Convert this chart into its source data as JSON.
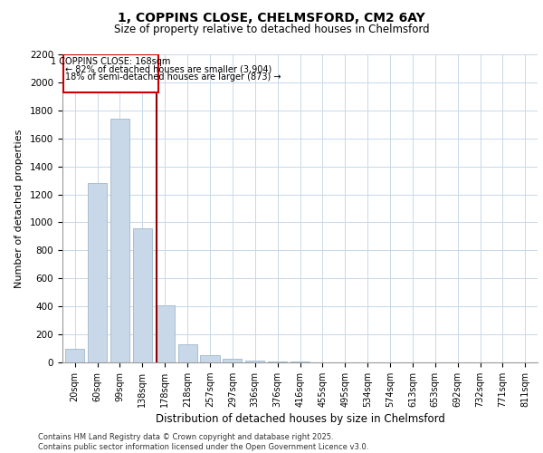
{
  "title_line1": "1, COPPINS CLOSE, CHELMSFORD, CM2 6AY",
  "title_line2": "Size of property relative to detached houses in Chelmsford",
  "xlabel": "Distribution of detached houses by size in Chelmsford",
  "ylabel": "Number of detached properties",
  "categories": [
    "20sqm",
    "60sqm",
    "99sqm",
    "138sqm",
    "178sqm",
    "218sqm",
    "257sqm",
    "297sqm",
    "336sqm",
    "376sqm",
    "416sqm",
    "455sqm",
    "495sqm",
    "534sqm",
    "574sqm",
    "613sqm",
    "653sqm",
    "692sqm",
    "732sqm",
    "771sqm",
    "811sqm"
  ],
  "values": [
    100,
    1280,
    1740,
    960,
    410,
    130,
    50,
    25,
    15,
    8,
    5,
    3,
    2,
    2,
    1,
    1,
    1,
    0,
    0,
    0,
    0
  ],
  "bar_color": "#c8d8e8",
  "bar_edge_color": "#a0b8cc",
  "property_label": "1 COPPINS CLOSE: 168sqm",
  "annotation_line1": "← 82% of detached houses are smaller (3,904)",
  "annotation_line2": "18% of semi-detached houses are larger (873) →",
  "line_color": "#8b0000",
  "box_edge_color": "#cc0000",
  "ylim_max": 2200,
  "yticks": [
    0,
    200,
    400,
    600,
    800,
    1000,
    1200,
    1400,
    1600,
    1800,
    2000,
    2200
  ],
  "footer_line1": "Contains HM Land Registry data © Crown copyright and database right 2025.",
  "footer_line2": "Contains public sector information licensed under the Open Government Licence v3.0.",
  "background_color": "#ffffff",
  "grid_color": "#c8d8e8",
  "prop_line_index": 3.62
}
